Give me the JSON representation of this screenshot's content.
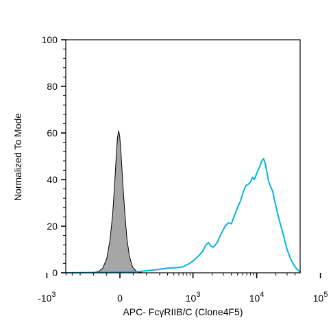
{
  "chart_data": {
    "type": "area",
    "title": "",
    "xlabel": "APC- FcγRIIB/C (Clone4F5)",
    "ylabel": "Normalized To Mode",
    "ylim": [
      0,
      100
    ],
    "xscale": "biexponential",
    "grid": false,
    "legend": "none",
    "y_ticks": [
      0,
      20,
      40,
      60,
      80,
      100
    ],
    "x_ticks": [
      {
        "value": -1000,
        "base": "-10",
        "exp": "3"
      },
      {
        "value": 0,
        "base": "0",
        "exp": ""
      },
      {
        "value": 1000,
        "base": "10",
        "exp": "3"
      },
      {
        "value": 10000,
        "base": "10",
        "exp": "4"
      },
      {
        "value": 100000,
        "base": "10",
        "exp": "5"
      }
    ],
    "series": [
      {
        "style": "filled",
        "color": "#a6a6a6",
        "edge_color": "#000000",
        "points": [
          [
            -220,
            0
          ],
          [
            -160,
            0.6
          ],
          [
            -130,
            2
          ],
          [
            -100,
            6
          ],
          [
            -75,
            14
          ],
          [
            -55,
            25
          ],
          [
            -40,
            38
          ],
          [
            -28,
            50
          ],
          [
            -18,
            58
          ],
          [
            -10,
            61
          ],
          [
            -2,
            59
          ],
          [
            8,
            52
          ],
          [
            20,
            40
          ],
          [
            35,
            27
          ],
          [
            52,
            15
          ],
          [
            72,
            7
          ],
          [
            95,
            2.5
          ],
          [
            125,
            0.6
          ],
          [
            170,
            0
          ]
        ]
      },
      {
        "style": "line",
        "color": "#00b4e0",
        "points": [
          [
            -7000,
            0
          ],
          [
            0,
            0.3
          ],
          [
            150,
            0.6
          ],
          [
            260,
            1.2
          ],
          [
            400,
            2
          ],
          [
            550,
            2.2
          ],
          [
            700,
            2.6
          ],
          [
            850,
            3.8
          ],
          [
            1000,
            5
          ],
          [
            1200,
            7
          ],
          [
            1400,
            9
          ],
          [
            1600,
            12
          ],
          [
            1750,
            13
          ],
          [
            1900,
            11.5
          ],
          [
            2100,
            11
          ],
          [
            2400,
            13
          ],
          [
            2800,
            17
          ],
          [
            3200,
            20
          ],
          [
            3600,
            21.5
          ],
          [
            4000,
            21
          ],
          [
            4400,
            24
          ],
          [
            5000,
            28
          ],
          [
            5600,
            31
          ],
          [
            6200,
            35
          ],
          [
            6800,
            37.5
          ],
          [
            7400,
            38
          ],
          [
            8000,
            39
          ],
          [
            8600,
            41
          ],
          [
            9200,
            40
          ],
          [
            9800,
            42
          ],
          [
            10500,
            44
          ],
          [
            11300,
            46
          ],
          [
            12000,
            48
          ],
          [
            12800,
            49
          ],
          [
            13600,
            47
          ],
          [
            14500,
            43
          ],
          [
            15500,
            39
          ],
          [
            16500,
            37
          ],
          [
            17800,
            35
          ],
          [
            19500,
            30
          ],
          [
            21500,
            25
          ],
          [
            24000,
            20
          ],
          [
            27000,
            15
          ],
          [
            30000,
            10
          ],
          [
            34000,
            6
          ],
          [
            38000,
            3.5
          ],
          [
            43000,
            1.5
          ],
          [
            50000,
            0.4
          ],
          [
            60000,
            0
          ],
          [
            100000,
            0
          ],
          [
            150000,
            0
          ]
        ]
      }
    ]
  }
}
